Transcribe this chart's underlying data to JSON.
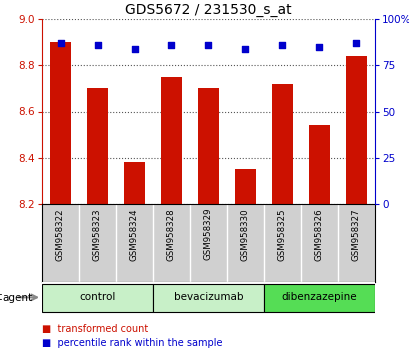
{
  "title": "GDS5672 / 231530_s_at",
  "samples": [
    "GSM958322",
    "GSM958323",
    "GSM958324",
    "GSM958328",
    "GSM958329",
    "GSM958330",
    "GSM958325",
    "GSM958326",
    "GSM958327"
  ],
  "transformed_count": [
    8.9,
    8.7,
    8.38,
    8.75,
    8.7,
    8.35,
    8.72,
    8.54,
    8.84
  ],
  "percentile_rank": [
    87,
    86,
    84,
    86,
    86,
    84,
    86,
    85,
    87
  ],
  "ylim_left": [
    8.2,
    9.0
  ],
  "ylim_right": [
    0,
    100
  ],
  "yticks_left": [
    8.2,
    8.4,
    8.6,
    8.8,
    9.0
  ],
  "yticks_right": [
    0,
    25,
    50,
    75,
    100
  ],
  "ytick_labels_right": [
    "0",
    "25",
    "50",
    "75",
    "100%"
  ],
  "groups": [
    {
      "label": "control",
      "indices": [
        0,
        1,
        2
      ],
      "color": "#c8f0c8"
    },
    {
      "label": "bevacizumab",
      "indices": [
        3,
        4,
        5
      ],
      "color": "#c8f0c8"
    },
    {
      "label": "dibenzazepine",
      "indices": [
        6,
        7,
        8
      ],
      "color": "#55dd55"
    }
  ],
  "bar_color": "#cc1100",
  "dot_color": "#0000cc",
  "bar_width": 0.55,
  "bar_bottom": 8.2,
  "background_color": "#ffffff",
  "plot_bg_color": "#ffffff",
  "grid_color": "#555555",
  "sample_bg_color": "#d0d0d0",
  "legend_items": [
    {
      "label": "transformed count",
      "color": "#cc1100"
    },
    {
      "label": "percentile rank within the sample",
      "color": "#0000cc"
    }
  ],
  "agent_label": "agent",
  "left_axis_color": "#cc1100",
  "right_axis_color": "#0000cc"
}
